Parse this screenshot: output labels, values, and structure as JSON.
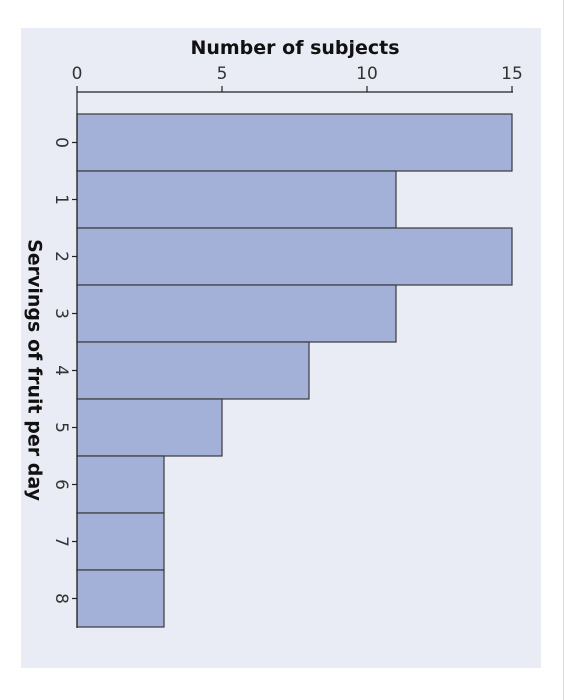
{
  "chart_data": {
    "type": "bar",
    "orientation": "rotated-90-clockwise",
    "xlabel": "Servings of fruit per day",
    "ylabel": "Number of subjects",
    "categories": [
      "0",
      "1",
      "2",
      "3",
      "4",
      "5",
      "6",
      "7",
      "8"
    ],
    "values": [
      15,
      11,
      15,
      11,
      8,
      5,
      3,
      3,
      3
    ],
    "ylim": [
      0,
      15
    ],
    "yticks": [
      "0",
      "5",
      "10",
      "15"
    ],
    "grid": false,
    "legend": "none",
    "colors": {
      "bar_fill": "#a3b0d8",
      "bar_stroke": "#3a3a3a",
      "panel_bg": "#e9ebf5",
      "axis": "#222222"
    }
  }
}
